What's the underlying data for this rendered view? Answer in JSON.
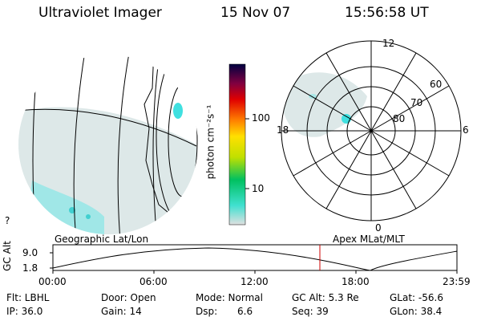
{
  "header": {
    "instrument": "Ultraviolet Imager",
    "date": "15 Nov 07",
    "time": "15:56:58 UT"
  },
  "colorbar": {
    "unit_label": "photon cm⁻²s⁻¹",
    "ticks": [
      "100",
      "10"
    ]
  },
  "polar_plot": {
    "mlt_labels": {
      "top": "12",
      "left": "18",
      "right": "6",
      "bottom": "0"
    },
    "mlat_labels": [
      "60",
      "70",
      "80"
    ]
  },
  "orbit_panel": {
    "y_axis_label": "GC Alt",
    "y_ticks": [
      "9.0",
      "1.8"
    ],
    "left_title": "Geographic Lat/Lon",
    "right_title": "Apex MLat/MLT",
    "x_ticks": [
      "00:00",
      "06:00",
      "12:00",
      "18:00",
      "23:59"
    ]
  },
  "info": {
    "flt": "Flt: LBHL",
    "ip": "IP: 36.0",
    "door": "Door: Open",
    "gain": "Gain: 14",
    "mode": "Mode: Normal",
    "dsp": "Dsp:",
    "dsp_val": "6.6",
    "gc_alt": "GC Alt: 5.3 Re",
    "seq": "Seq: 39",
    "glat": "GLat: -56.6",
    "glon": "GLon: 38.4"
  },
  "misc": {
    "corner_mark": "?"
  },
  "colors": {
    "haze": "#d9e6e6",
    "aurora": "#40e0e0",
    "marker": "#cc0000"
  }
}
